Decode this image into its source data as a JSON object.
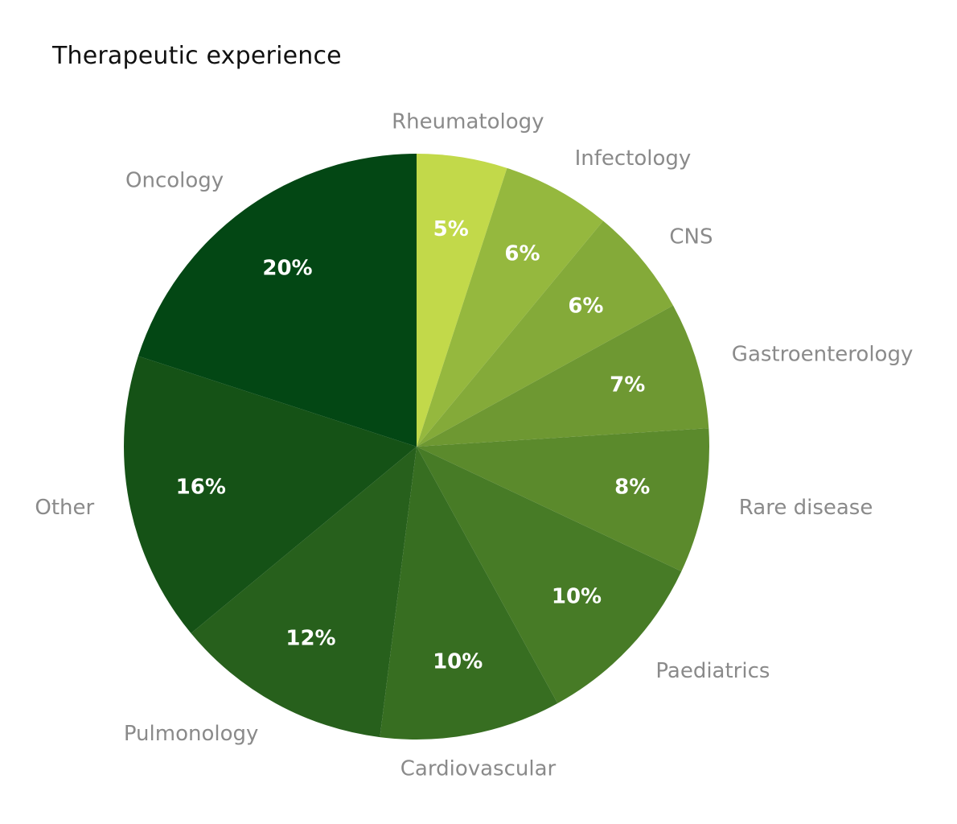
{
  "chart_data": {
    "type": "pie",
    "title": "Therapeutic experience",
    "slices": [
      {
        "label": "Rheumatology",
        "value": 5,
        "display": "5%",
        "color": "#c2d94a"
      },
      {
        "label": "Infectology",
        "value": 6,
        "display": "6%",
        "color": "#95b83e"
      },
      {
        "label": "CNS",
        "value": 6,
        "display": "6%",
        "color": "#84aa39"
      },
      {
        "label": "Gastroenterology",
        "value": 7,
        "display": "7%",
        "color": "#6e9832"
      },
      {
        "label": "Rare disease",
        "value": 8,
        "display": "8%",
        "color": "#5b8a2c"
      },
      {
        "label": "Paediatrics",
        "value": 10,
        "display": "10%",
        "color": "#477b26"
      },
      {
        "label": "Cardiovascular",
        "value": 10,
        "display": "10%",
        "color": "#376e21"
      },
      {
        "label": "Pulmonology",
        "value": 12,
        "display": "12%",
        "color": "#27601c"
      },
      {
        "label": "Other",
        "value": 16,
        "display": "16%",
        "color": "#155216"
      },
      {
        "label": "Oncology",
        "value": 20,
        "display": "20%",
        "color": "#034714"
      }
    ],
    "legend": "none"
  }
}
